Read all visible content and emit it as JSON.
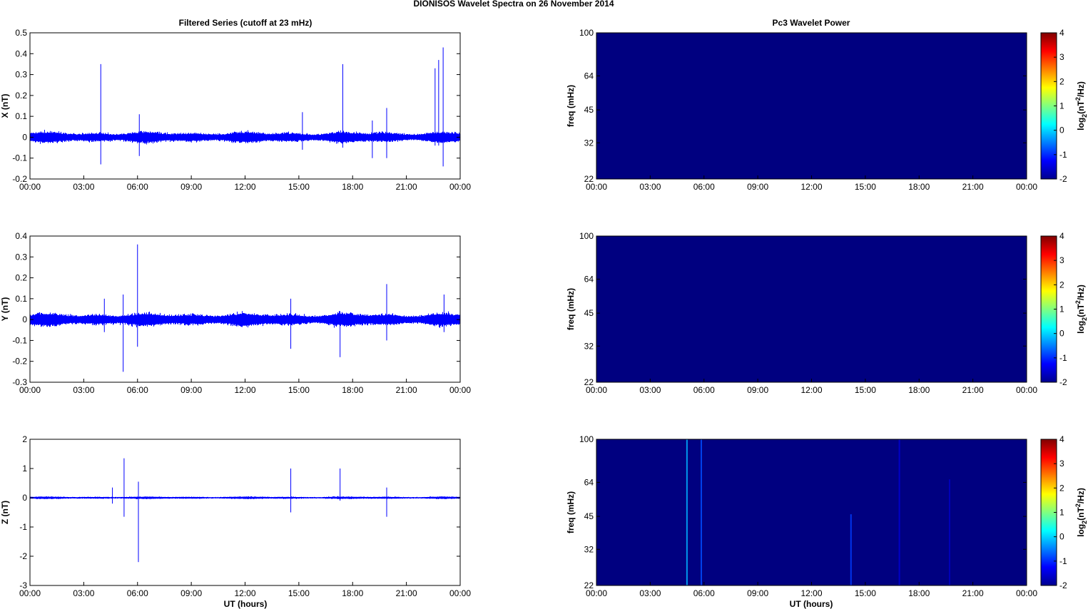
{
  "figure": {
    "title": "DIONISOS Wavelet Spectra on 26 November  2014",
    "left_title": "Filtered Series (cutoff at 23 mHz)",
    "right_title": "Pc3 Wavelet Power",
    "xlabel": "UT (hours)",
    "x_tick_labels": [
      "00:00",
      "03:00",
      "06:00",
      "09:00",
      "12:00",
      "15:00",
      "18:00",
      "21:00",
      "00:00"
    ]
  },
  "chart_data": [
    {
      "type": "line",
      "panel": "X",
      "ylabel": "X (nT)",
      "xlim": [
        0,
        24
      ],
      "ylim": [
        -0.2,
        0.5
      ],
      "yticks": [
        -0.2,
        -0.1,
        0,
        0.1,
        0.2,
        0.3,
        0.4,
        0.5
      ],
      "ytick_labels": [
        "-0.2",
        "-0.1",
        "0",
        "0.1",
        "0.2",
        "0.3",
        "0.4",
        "0.5"
      ],
      "noise_amplitude": 0.025,
      "series": [
        {
          "color": "#0000ff",
          "spikes": [
            {
              "t": 3.95,
              "max": 0.35,
              "min": -0.13
            },
            {
              "t": 6.1,
              "max": 0.11,
              "min": -0.09
            },
            {
              "t": 15.2,
              "max": 0.12,
              "min": -0.06
            },
            {
              "t": 17.45,
              "max": 0.35,
              "min": -0.05
            },
            {
              "t": 19.1,
              "max": 0.08,
              "min": -0.1
            },
            {
              "t": 19.9,
              "max": 0.14,
              "min": -0.1
            },
            {
              "t": 22.6,
              "max": 0.33,
              "min": -0.04
            },
            {
              "t": 22.8,
              "max": 0.37,
              "min": -0.04
            },
            {
              "t": 23.05,
              "max": 0.43,
              "min": -0.14
            }
          ]
        }
      ]
    },
    {
      "type": "line",
      "panel": "Y",
      "ylabel": "Y (nT)",
      "xlim": [
        0,
        24
      ],
      "ylim": [
        -0.3,
        0.4
      ],
      "yticks": [
        -0.3,
        -0.2,
        -0.1,
        0,
        0.1,
        0.2,
        0.3,
        0.4
      ],
      "ytick_labels": [
        "-0.3",
        "-0.2",
        "-0.1",
        "0",
        "0.1",
        "0.2",
        "0.3",
        "0.4"
      ],
      "noise_amplitude": 0.03,
      "series": [
        {
          "color": "#0000ff",
          "spikes": [
            {
              "t": 4.15,
              "max": 0.1,
              "min": -0.06
            },
            {
              "t": 5.2,
              "max": 0.12,
              "min": -0.25
            },
            {
              "t": 6.0,
              "max": 0.36,
              "min": -0.13
            },
            {
              "t": 14.55,
              "max": 0.1,
              "min": -0.14
            },
            {
              "t": 17.3,
              "max": 0.04,
              "min": -0.18
            },
            {
              "t": 19.9,
              "max": 0.17,
              "min": -0.1
            },
            {
              "t": 23.1,
              "max": 0.12,
              "min": -0.06
            }
          ]
        }
      ]
    },
    {
      "type": "line",
      "panel": "Z",
      "ylabel": "Z (nT)",
      "xlim": [
        0,
        24
      ],
      "ylim": [
        -3,
        2
      ],
      "yticks": [
        -3,
        -2,
        -1,
        0,
        1,
        2
      ],
      "ytick_labels": [
        "-3",
        "-2",
        "-1",
        "0",
        "1",
        "2"
      ],
      "noise_amplitude": 0.04,
      "series": [
        {
          "color": "#0000ff",
          "spikes": [
            {
              "t": 4.6,
              "max": 0.35,
              "min": -0.2
            },
            {
              "t": 5.25,
              "max": 1.35,
              "min": -0.65
            },
            {
              "t": 6.05,
              "max": 0.55,
              "min": -2.2
            },
            {
              "t": 14.55,
              "max": 1.0,
              "min": -0.5
            },
            {
              "t": 17.3,
              "max": 1.0,
              "min": -0.1
            },
            {
              "t": 19.9,
              "max": 0.35,
              "min": -0.65
            }
          ]
        }
      ]
    },
    {
      "type": "heatmap",
      "panel": "X",
      "ylabel": "freq (mHz)",
      "xlim": [
        0,
        24
      ],
      "ylim": [
        22,
        100
      ],
      "y_scale": "log",
      "yticks": [
        22,
        32,
        45,
        64,
        100
      ],
      "ytick_labels": [
        "22",
        "32",
        "45",
        "64",
        "100"
      ],
      "background_value": -2,
      "streaks": [],
      "colorbar": {
        "label": "log2(nT2/Hz)",
        "range": [
          -2,
          4
        ],
        "ticks": [
          -2,
          -1,
          0,
          1,
          2,
          3,
          4
        ],
        "tick_labels": [
          "-2",
          "-1",
          "0",
          "1",
          "2",
          "3",
          "4"
        ],
        "colormap": "jet"
      }
    },
    {
      "type": "heatmap",
      "panel": "Y",
      "ylabel": "freq (mHz)",
      "xlim": [
        0,
        24
      ],
      "ylim": [
        22,
        100
      ],
      "y_scale": "log",
      "yticks": [
        22,
        32,
        45,
        64,
        100
      ],
      "ytick_labels": [
        "22",
        "32",
        "45",
        "64",
        "100"
      ],
      "background_value": -2,
      "streaks": [],
      "colorbar": {
        "label": "log2(nT2/Hz)",
        "range": [
          -2,
          4
        ],
        "ticks": [
          -2,
          -1,
          0,
          1,
          2,
          3,
          4
        ],
        "tick_labels": [
          "-2",
          "-1",
          "0",
          "1",
          "2",
          "3",
          "4"
        ],
        "colormap": "jet"
      }
    },
    {
      "type": "heatmap",
      "panel": "Z",
      "ylabel": "freq (mHz)",
      "xlim": [
        0,
        24
      ],
      "ylim": [
        22,
        100
      ],
      "y_scale": "log",
      "yticks": [
        22,
        32,
        45,
        64,
        100
      ],
      "ytick_labels": [
        "22",
        "32",
        "45",
        "64",
        "100"
      ],
      "background_value": -2,
      "streaks": [
        {
          "t": 5.05,
          "fmin": 22,
          "fmax": 100,
          "value": -0.2
        },
        {
          "t": 5.85,
          "fmin": 22,
          "fmax": 100,
          "value": -0.8
        },
        {
          "t": 14.2,
          "fmin": 22,
          "fmax": 46,
          "value": -0.9
        },
        {
          "t": 16.9,
          "fmin": 22,
          "fmax": 100,
          "value": -1.5
        },
        {
          "t": 19.7,
          "fmin": 22,
          "fmax": 66,
          "value": -1.6
        }
      ],
      "colorbar": {
        "label": "log2(nT2/Hz)",
        "range": [
          -2,
          4
        ],
        "ticks": [
          -2,
          -1,
          0,
          1,
          2,
          3,
          4
        ],
        "tick_labels": [
          "-2",
          "-1",
          "0",
          "1",
          "2",
          "3",
          "4"
        ],
        "colormap": "jet"
      }
    }
  ]
}
